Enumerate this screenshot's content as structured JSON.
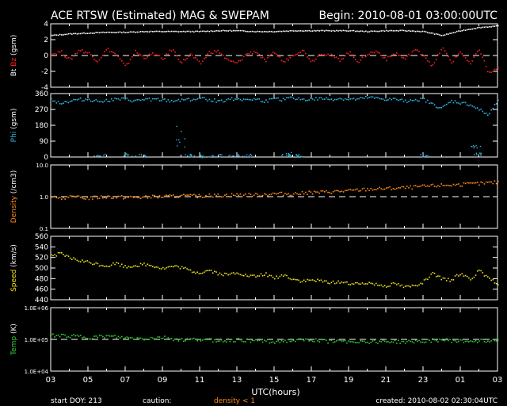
{
  "header": {
    "title": "ACE RTSW (Estimated) MAG & SWEPAM",
    "begin": "Begin: 2010-08-01 03:00:00UTC"
  },
  "footer": {
    "start_doy": "start DOY: 213",
    "caution": "caution:",
    "density_note": "density < 1",
    "created": "created: 2010-08-02 02:30:04UTC"
  },
  "colors": {
    "background": "#000000",
    "frame": "#ffffff",
    "bt": "#ffffff",
    "bz": "#ff2020",
    "phi": "#30b8e8",
    "density": "#ff8c1a",
    "speed": "#f0e020",
    "temp": "#33cc33"
  },
  "chart_data": {
    "type": "scatter",
    "xlabel": "UTC(hours)",
    "xticks": [
      "03",
      "05",
      "07",
      "09",
      "11",
      "13",
      "15",
      "17",
      "19",
      "21",
      "23",
      "01",
      "03"
    ],
    "xlim": [
      0,
      24
    ],
    "panels": [
      {
        "id": "mag",
        "ylabel_parts": [
          "Bt",
          "Bz",
          "(gsm)"
        ],
        "ylim": [
          -4,
          4
        ],
        "yticks": [
          "4",
          "2",
          "0",
          "-2",
          "-4"
        ],
        "yticks_values": [
          4,
          2,
          0,
          -2,
          -4
        ],
        "log": false,
        "reference_line": 0,
        "series": [
          {
            "name": "Bt",
            "color_key": "bt",
            "x": [
              0,
              1,
              2,
              3,
              4,
              5,
              6,
              7,
              8,
              9,
              10,
              11,
              12,
              13,
              14,
              15,
              16,
              17,
              18,
              19,
              20,
              21,
              22,
              23,
              24
            ],
            "y": [
              2.6,
              2.8,
              2.9,
              3.0,
              3.0,
              3.1,
              3.1,
              3.1,
              3.1,
              3.2,
              3.2,
              3.1,
              3.1,
              3.2,
              3.2,
              3.2,
              3.2,
              3.1,
              3.2,
              3.2,
              3.1,
              2.6,
              3.2,
              3.6,
              3.8
            ]
          },
          {
            "name": "Bz",
            "color_key": "bz",
            "x": [
              0,
              0.5,
              1,
              1.5,
              2,
              2.5,
              3,
              3.5,
              4,
              4.5,
              5,
              5.5,
              6,
              6.5,
              7,
              7.5,
              8,
              8.5,
              9,
              9.5,
              10,
              10.5,
              11,
              11.5,
              12,
              12.5,
              13,
              13.5,
              14,
              14.5,
              15,
              15.5,
              16,
              16.5,
              17,
              17.5,
              18,
              18.5,
              19,
              19.5,
              20,
              20.5,
              21,
              21.5,
              22,
              22.5,
              23,
              23.5,
              24
            ],
            "y": [
              0.2,
              0.6,
              -0.5,
              0.8,
              0.4,
              -0.6,
              0.9,
              0.2,
              -1.4,
              0.6,
              -0.2,
              0.3,
              -0.4,
              0.9,
              -0.8,
              0.2,
              -1.0,
              0.5,
              0.6,
              -0.6,
              -0.9,
              0.3,
              0.6,
              -0.7,
              0.5,
              -0.8,
              0.2,
              0.8,
              -0.7,
              0.4,
              0.1,
              -0.5,
              0.5,
              -0.7,
              0.3,
              0.6,
              -0.4,
              0.4,
              -0.4,
              0.8,
              0.2,
              -1.3,
              1.1,
              -0.8,
              0.6,
              -1.1,
              0.9,
              -2.2,
              -1.5
            ]
          }
        ]
      },
      {
        "id": "phi",
        "ylabel_parts": [
          "Phi (gsm)"
        ],
        "ylim": [
          0,
          360
        ],
        "yticks": [
          "360",
          "270",
          "180",
          "90",
          "0"
        ],
        "yticks_values": [
          360,
          270,
          180,
          90,
          0
        ],
        "log": false,
        "series": [
          {
            "name": "Phi",
            "color_key": "phi",
            "x": [
              0,
              0.5,
              1,
              1.5,
              2,
              2.5,
              3,
              3.5,
              4,
              4.5,
              5,
              5.5,
              6,
              6.5,
              7,
              7.5,
              8,
              8.5,
              9,
              9.5,
              10,
              10.5,
              11,
              11.5,
              12,
              12.5,
              13,
              13.5,
              14,
              14.5,
              15,
              15.5,
              16,
              16.5,
              17,
              17.5,
              18,
              18.5,
              19,
              19.5,
              20,
              20.5,
              21,
              21.5,
              22,
              22.5,
              23,
              23.5,
              24
            ],
            "y": [
              330,
              310,
              320,
              330,
              330,
              320,
              325,
              330,
              330,
              320,
              330,
              330,
              325,
              320,
              330,
              330,
              335,
              330,
              320,
              330,
              335,
              330,
              330,
              320,
              330,
              330,
              340,
              330,
              330,
              335,
              330,
              335,
              330,
              330,
              340,
              335,
              330,
              330,
              320,
              330,
              330,
              300,
              280,
              320,
              310,
              300,
              270,
              240,
              330
            ]
          },
          {
            "name": "Phi-low",
            "color_key": "phi",
            "x": [
              2.6,
              4.2,
              4.8,
              7.0,
              7.5,
              8.2,
              8.9,
              9.8,
              10.5,
              12.6,
              13.0,
              13.4,
              20.1,
              22.8,
              23.0
            ],
            "y": [
              10,
              15,
              12,
              100,
              12,
              8,
              10,
              15,
              12,
              20,
              15,
              10,
              10,
              60,
              20
            ]
          }
        ]
      },
      {
        "id": "density",
        "ylabel_parts": [
          "Density (/cm3)"
        ],
        "ylim": [
          0.1,
          10
        ],
        "yticks": [
          "10.0",
          "1.0",
          "0.1"
        ],
        "yticks_values": [
          10,
          1,
          0.1
        ],
        "log": true,
        "reference_line": 1,
        "series": [
          {
            "name": "Density",
            "color_key": "density",
            "x": [
              0,
              1,
              2,
              3,
              4,
              5,
              6,
              7,
              8,
              9,
              10,
              11,
              12,
              13,
              14,
              15,
              16,
              17,
              18,
              19,
              20,
              21,
              22,
              23,
              24
            ],
            "y": [
              0.95,
              1.0,
              0.95,
              1.05,
              1.0,
              1.0,
              1.05,
              1.1,
              1.1,
              1.15,
              1.2,
              1.2,
              1.3,
              1.3,
              1.4,
              1.5,
              1.6,
              1.8,
              1.9,
              2.0,
              2.2,
              2.4,
              2.5,
              2.7,
              3.0
            ]
          }
        ]
      },
      {
        "id": "speed",
        "ylabel_parts": [
          "Speed (km/s)"
        ],
        "ylim": [
          440,
          560
        ],
        "yticks": [
          "560",
          "540",
          "520",
          "500",
          "480",
          "460",
          "440"
        ],
        "yticks_values": [
          560,
          540,
          520,
          500,
          480,
          460,
          440
        ],
        "log": false,
        "series": [
          {
            "name": "Speed",
            "color_key": "speed",
            "x": [
              0,
              0.5,
              1,
              1.5,
              2,
              2.5,
              3,
              3.5,
              4,
              4.5,
              5,
              5.5,
              6,
              6.5,
              7,
              7.5,
              8,
              8.5,
              9,
              9.5,
              10,
              10.5,
              11,
              11.5,
              12,
              12.5,
              13,
              13.5,
              14,
              14.5,
              15,
              15.5,
              16,
              16.5,
              17,
              17.5,
              18,
              18.5,
              19,
              19.5,
              20,
              20.5,
              21,
              21.5,
              22,
              22.5,
              23,
              23.5,
              24
            ],
            "y": [
              525,
              528,
              520,
              515,
              512,
              508,
              505,
              510,
              503,
              506,
              508,
              505,
              500,
              504,
              502,
              495,
              492,
              497,
              490,
              488,
              493,
              486,
              485,
              490,
              482,
              488,
              480,
              476,
              478,
              476,
              474,
              475,
              472,
              470,
              474,
              470,
              468,
              472,
              465,
              468,
              475,
              490,
              480,
              478,
              492,
              480,
              496,
              480,
              472
            ]
          }
        ]
      },
      {
        "id": "temp",
        "ylabel_parts": [
          "Temp (K)"
        ],
        "ylim": [
          10000,
          1000000
        ],
        "yticks": [
          "1.0E+06",
          "1.0E+05",
          "1.0E+04"
        ],
        "yticks_values": [
          1000000,
          100000,
          10000
        ],
        "log": true,
        "reference_line": 100000,
        "series": [
          {
            "name": "Temp",
            "color_key": "temp",
            "x": [
              0,
              1,
              2,
              3,
              4,
              5,
              6,
              7,
              8,
              9,
              10,
              11,
              12,
              13,
              14,
              15,
              16,
              17,
              18,
              19,
              20,
              21,
              22,
              23,
              24
            ],
            "y": [
              140000,
              135000,
              120000,
              130000,
              115000,
              110000,
              120000,
              100000,
              105000,
              95000,
              100000,
              95000,
              90000,
              95000,
              100000,
              90000,
              92000,
              88000,
              90000,
              85000,
              95000,
              100000,
              90000,
              95000,
              100000
            ]
          }
        ]
      }
    ]
  }
}
